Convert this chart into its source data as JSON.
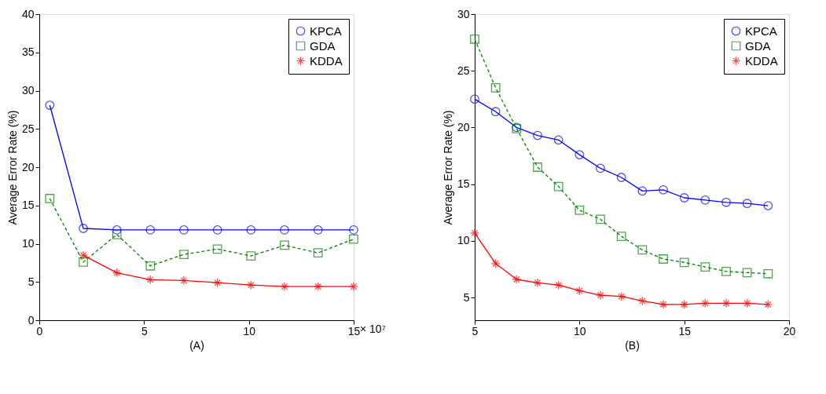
{
  "chart_data": [
    {
      "type": "line",
      "xlabel": "(A)",
      "ylabel": "Average Error Rate (%)",
      "annotations": [
        "× 10⁷"
      ],
      "x": [
        0.5,
        2.1,
        3.7,
        5.3,
        6.9,
        8.5,
        10.1,
        11.7,
        13.3,
        15
      ],
      "xlim": [
        0,
        15
      ],
      "xticks": [
        0,
        5,
        10,
        15
      ],
      "ylim": [
        0,
        40
      ],
      "yticks": [
        0,
        5,
        10,
        15,
        20,
        25,
        30,
        35,
        40
      ],
      "grid": false,
      "legend": "top right",
      "series": [
        {
          "name": "KPCA",
          "color": "#0000ff",
          "marker": "circle",
          "line_style": "solid",
          "values": [
            28.1,
            12.0,
            11.8,
            11.8,
            11.8,
            11.8,
            11.8,
            11.8,
            11.8,
            11.8
          ]
        },
        {
          "name": "GDA",
          "color": "#008000",
          "marker": "square",
          "line_style": "dashed",
          "values": [
            15.9,
            7.6,
            11.2,
            7.1,
            8.6,
            9.3,
            8.4,
            9.8,
            8.8,
            10.6
          ]
        },
        {
          "name": "KDDA",
          "color": "#ff0000",
          "marker": "cross",
          "line_style": "solid",
          "values": [
            null,
            8.5,
            6.2,
            5.3,
            5.2,
            4.9,
            4.6,
            4.4,
            4.4,
            4.4
          ]
        }
      ]
    },
    {
      "type": "line",
      "xlabel": "(B)",
      "ylabel": "Average Error Rate (%)",
      "x": [
        5,
        6,
        7,
        8,
        9,
        10,
        11,
        12,
        13,
        14,
        15,
        16,
        17,
        18,
        19
      ],
      "xlim": [
        5,
        20
      ],
      "xticks": [
        5,
        10,
        15,
        20
      ],
      "ylim": [
        3,
        30
      ],
      "yticks": [
        5,
        10,
        15,
        20,
        25,
        30
      ],
      "grid": false,
      "legend": "top right",
      "series": [
        {
          "name": "KPCA",
          "color": "#0000ff",
          "marker": "circle",
          "line_style": "solid",
          "values": [
            22.5,
            21.4,
            20.0,
            19.3,
            18.9,
            17.6,
            16.4,
            15.6,
            14.4,
            14.5,
            13.8,
            13.6,
            13.4,
            13.3,
            13.1
          ]
        },
        {
          "name": "GDA",
          "color": "#008000",
          "marker": "square",
          "line_style": "dashed",
          "values": [
            27.8,
            23.5,
            19.9,
            16.5,
            14.8,
            12.7,
            11.9,
            10.4,
            9.2,
            8.4,
            8.1,
            7.7,
            7.3,
            7.2,
            7.1
          ]
        },
        {
          "name": "KDDA",
          "color": "#ff0000",
          "marker": "cross",
          "line_style": "solid",
          "values": [
            10.7,
            8.0,
            6.6,
            6.3,
            6.1,
            5.6,
            5.2,
            5.1,
            4.7,
            4.4,
            4.4,
            4.5,
            4.5,
            4.5,
            4.4
          ]
        }
      ]
    }
  ]
}
